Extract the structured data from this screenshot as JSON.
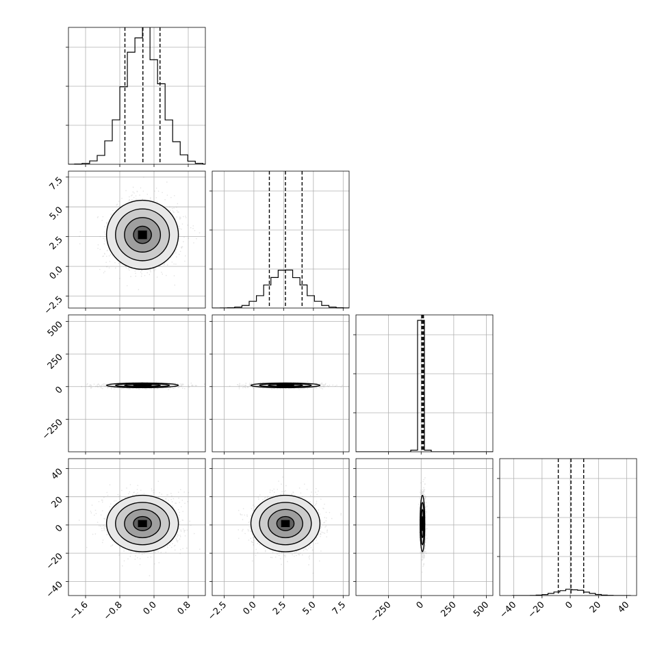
{
  "chart_data": {
    "type": "corner",
    "title": "",
    "parameters": [
      {
        "range": [
          -2.0,
          1.2
        ],
        "mean": -0.27,
        "sd": 0.42,
        "ticks": [
          -1.6,
          -0.8,
          0.0,
          0.8
        ],
        "tick_labels": [
          "−1.6",
          "−0.8",
          "0.0",
          "0.8"
        ],
        "quantiles": [
          -0.68,
          -0.26,
          0.14
        ],
        "density_max": 0.98
      },
      {
        "range": [
          -3.5,
          8.0
        ],
        "mean": 2.65,
        "sd": 1.45,
        "ticks": [
          -2.5,
          0.0,
          2.5,
          5.0,
          7.5
        ],
        "tick_labels": [
          "−2.5",
          "0.0",
          "2.5",
          "5.0",
          "7.5"
        ],
        "quantiles": [
          1.3,
          2.65,
          4.05
        ],
        "density_max": 0.28
      },
      {
        "range": [
          -500,
          550
        ],
        "mean": 10,
        "sd": 9,
        "ticks": [
          -250,
          0,
          250,
          500
        ],
        "tick_labels": [
          "−250",
          "0",
          "250",
          "500"
        ],
        "quantiles": [
          5,
          10,
          18
        ],
        "density_max": 0.044
      },
      {
        "range": [
          -50,
          47
        ],
        "mean": 1,
        "sd": 10,
        "ticks": [
          -40,
          -20,
          0,
          20,
          40
        ],
        "tick_labels": [
          "−40",
          "−20",
          "0",
          "20",
          "40"
        ],
        "quantiles": [
          -8.5,
          0.5,
          9.5
        ],
        "density_max": 0.045
      }
    ],
    "grid": true,
    "scatter_color": "#808080",
    "contour_color": "#000000"
  }
}
